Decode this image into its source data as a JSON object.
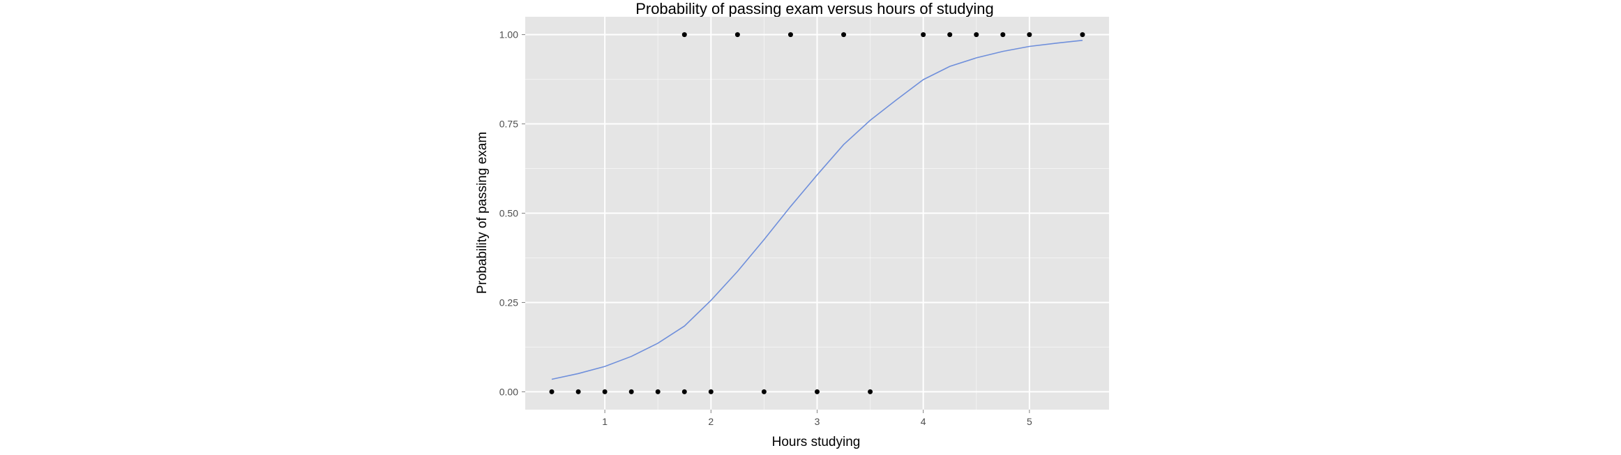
{
  "chart_data": {
    "type": "scatter",
    "title": "Probability of passing exam versus hours of studying",
    "xlabel": "Hours studying",
    "ylabel": "Probability of passing exam",
    "xlim": [
      0.25,
      5.75
    ],
    "ylim": [
      -0.05,
      1.05
    ],
    "x_ticks": [
      1,
      2,
      3,
      4,
      5
    ],
    "y_ticks": [
      0.0,
      0.25,
      0.5,
      0.75,
      1.0
    ],
    "x_tick_labels": [
      "1",
      "2",
      "3",
      "4",
      "5"
    ],
    "y_tick_labels": [
      "0.00",
      "0.25",
      "0.50",
      "0.75",
      "1.00"
    ],
    "grid": true,
    "legend": "none",
    "colors": {
      "panel_bg": "#e5e5e5",
      "grid": "#ffffff",
      "points": "#000000",
      "curve": "#6f8fdb"
    },
    "series": [
      {
        "kind": "points",
        "x": [
          0.5,
          0.75,
          1.0,
          1.25,
          1.5,
          1.75,
          1.75,
          2.0,
          2.25,
          2.5,
          2.75,
          3.0,
          3.25,
          3.5,
          4.0,
          4.25,
          4.5,
          4.75,
          5.0,
          5.5
        ],
        "y": [
          0,
          0,
          0,
          0,
          0,
          0,
          1,
          0,
          1,
          0,
          1,
          0,
          1,
          0,
          1,
          1,
          1,
          1,
          1,
          1
        ]
      },
      {
        "kind": "fitted-curve",
        "x": [
          0.5,
          0.75,
          1.0,
          1.25,
          1.5,
          1.75,
          2.0,
          2.25,
          2.5,
          2.75,
          3.0,
          3.25,
          3.5,
          3.75,
          4.0,
          4.25,
          4.5,
          4.75,
          5.0,
          5.25,
          5.5
        ],
        "y": [
          0.035,
          0.051,
          0.071,
          0.099,
          0.136,
          0.184,
          0.256,
          0.337,
          0.426,
          0.519,
          0.607,
          0.692,
          0.76,
          0.818,
          0.874,
          0.911,
          0.935,
          0.953,
          0.967,
          0.976,
          0.984
        ]
      }
    ]
  }
}
